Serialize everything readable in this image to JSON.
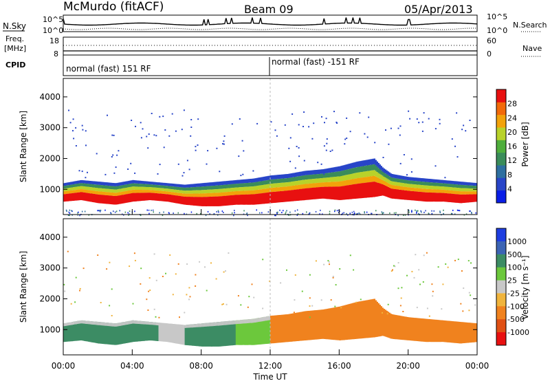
{
  "header": {
    "station": "McMurdo (fitACF)",
    "beam": "Beam 09",
    "date": "05/Apr/2013"
  },
  "status_panel": {
    "left_labels": [
      "N.Sky",
      "Freq.",
      "[MHz]",
      "CPID"
    ],
    "right_labels": [
      "N.Search",
      "Nave"
    ],
    "nsky_ticks": [
      "10^5",
      "10^0"
    ],
    "freq_ticks": [
      "18",
      "8"
    ],
    "search_ticks": [
      "10^5",
      "10^0"
    ],
    "nave_ticks": [
      "60",
      "0"
    ],
    "cpid_segments": [
      "normal (fast) 151 RF",
      "normal (fast) -151 RF"
    ]
  },
  "chart_data": [
    {
      "type": "heatmap",
      "name": "power",
      "ylabel": "Slant Range [km]",
      "ylim": [
        180,
        4600
      ],
      "y_ticks": [
        1000,
        2000,
        3000,
        4000
      ],
      "x_ticks": [
        "00:00",
        "04:00",
        "08:00",
        "12:00",
        "16:00",
        "20:00",
        "00:00"
      ],
      "colorbar": {
        "label": "Power [dB]",
        "range": [
          0,
          32
        ],
        "ticks": [
          4,
          8,
          12,
          16,
          20,
          24,
          28
        ],
        "colors": [
          "#0a1ee6",
          "#2845c8",
          "#2e6fa0",
          "#3a8c5a",
          "#4fae3c",
          "#b8d22a",
          "#f2a20a",
          "#f26a0a",
          "#e81010"
        ]
      },
      "echo_band": {
        "x_hours": [
          0,
          1,
          2,
          3,
          4,
          5,
          6,
          7,
          8,
          9,
          10,
          11,
          12,
          13,
          14,
          15,
          16,
          17,
          18,
          18.5,
          19,
          20,
          21,
          22,
          23,
          24
        ],
        "lower_km": [
          600,
          650,
          550,
          500,
          600,
          650,
          600,
          500,
          450,
          450,
          500,
          500,
          550,
          600,
          650,
          700,
          650,
          700,
          750,
          800,
          700,
          650,
          600,
          600,
          550,
          600
        ],
        "upper_km": [
          1200,
          1300,
          1250,
          1200,
          1300,
          1250,
          1200,
          1150,
          1200,
          1250,
          1300,
          1350,
          1450,
          1500,
          1600,
          1650,
          1750,
          1900,
          2000,
          1700,
          1500,
          1400,
          1350,
          1300,
          1250,
          1200
        ]
      }
    },
    {
      "type": "heatmap",
      "name": "velocity",
      "ylabel": "Slant Range [km]",
      "ylim": [
        180,
        4600
      ],
      "y_ticks": [
        1000,
        2000,
        3000,
        4000
      ],
      "x_ticks": [
        "00:00",
        "04:00",
        "08:00",
        "12:00",
        "16:00",
        "20:00",
        "00:00"
      ],
      "xlabel": "Time UT",
      "colorbar": {
        "label": "Velocity [m s⁻¹]",
        "tick_labels": [
          "1000",
          "500",
          "100",
          "25",
          "-25",
          "-100",
          "-500",
          "-1000"
        ],
        "colors": [
          "#1e3ee0",
          "#3c64b4",
          "#3c8c64",
          "#6cc83c",
          "#c8c8c8",
          "#f0b43c",
          "#f0821e",
          "#e05014",
          "#e81010"
        ]
      },
      "regions": [
        {
          "x_hours": [
            0,
            5.5
          ],
          "color": "#3c8c64"
        },
        {
          "x_hours": [
            5.5,
            7
          ],
          "color": "#c8c8c8"
        },
        {
          "x_hours": [
            7,
            10
          ],
          "color": "#3c8c64"
        },
        {
          "x_hours": [
            10,
            12
          ],
          "color": "#6cc83c"
        },
        {
          "x_hours": [
            12,
            24
          ],
          "color": "#f0821e"
        }
      ]
    }
  ],
  "xlabel": "Time UT"
}
